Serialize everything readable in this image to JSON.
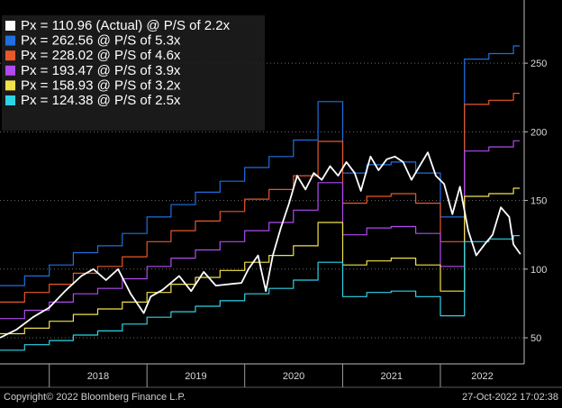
{
  "chart_data": {
    "type": "line",
    "title": "",
    "xlabel": "",
    "ylabel": "",
    "x_tick_labels": [
      "2018",
      "2019",
      "2020",
      "2021",
      "2022"
    ],
    "y_tick_labels": [
      "50",
      "100",
      "150",
      "200",
      "250"
    ],
    "y_ticks": [
      50,
      100,
      150,
      200,
      250
    ],
    "ylim": [
      31,
      296
    ],
    "xlim": [
      "2017-07-01",
      "2022-11-10"
    ],
    "year_boundaries": [
      "2018-01-01",
      "2019-01-01",
      "2020-01-01",
      "2021-01-01",
      "2022-01-01"
    ],
    "grid": "horizontal dotted",
    "legend_position": "top-left",
    "series": [
      {
        "name": "Px = 110.96 (Actual) @ P/S of 2.2x",
        "color": "#ffffff",
        "kind": "line",
        "points": [
          [
            "2017-07-01",
            50
          ],
          [
            "2017-09-01",
            56
          ],
          [
            "2017-11-01",
            65
          ],
          [
            "2018-01-01",
            72
          ],
          [
            "2018-03-01",
            84
          ],
          [
            "2018-05-01",
            95
          ],
          [
            "2018-06-15",
            100
          ],
          [
            "2018-08-01",
            92
          ],
          [
            "2018-09-15",
            100
          ],
          [
            "2018-11-01",
            82
          ],
          [
            "2018-12-20",
            68
          ],
          [
            "2019-01-15",
            80
          ],
          [
            "2019-03-01",
            85
          ],
          [
            "2019-05-01",
            95
          ],
          [
            "2019-06-15",
            84
          ],
          [
            "2019-08-01",
            98
          ],
          [
            "2019-09-15",
            88
          ],
          [
            "2019-11-01",
            89
          ],
          [
            "2019-12-20",
            90
          ],
          [
            "2020-01-15",
            100
          ],
          [
            "2020-02-20",
            110
          ],
          [
            "2020-03-20",
            84
          ],
          [
            "2020-04-15",
            110
          ],
          [
            "2020-05-15",
            130
          ],
          [
            "2020-06-15",
            148
          ],
          [
            "2020-07-15",
            168
          ],
          [
            "2020-08-15",
            158
          ],
          [
            "2020-09-15",
            170
          ],
          [
            "2020-10-15",
            165
          ],
          [
            "2020-11-15",
            175
          ],
          [
            "2020-12-15",
            168
          ],
          [
            "2021-01-15",
            178
          ],
          [
            "2021-02-15",
            170
          ],
          [
            "2021-03-10",
            157
          ],
          [
            "2021-04-15",
            182
          ],
          [
            "2021-05-15",
            172
          ],
          [
            "2021-06-15",
            180
          ],
          [
            "2021-07-15",
            182
          ],
          [
            "2021-08-15",
            178
          ],
          [
            "2021-09-15",
            165
          ],
          [
            "2021-10-15",
            175
          ],
          [
            "2021-11-15",
            185
          ],
          [
            "2021-12-15",
            168
          ],
          [
            "2022-01-15",
            162
          ],
          [
            "2022-02-15",
            140
          ],
          [
            "2022-03-15",
            160
          ],
          [
            "2022-04-15",
            128
          ],
          [
            "2022-05-15",
            110
          ],
          [
            "2022-06-15",
            118
          ],
          [
            "2022-07-15",
            125
          ],
          [
            "2022-08-15",
            145
          ],
          [
            "2022-09-15",
            138
          ],
          [
            "2022-10-01",
            118
          ],
          [
            "2022-10-27",
            110.96
          ]
        ]
      },
      {
        "name": "Px = 262.56 @ P/S of 5.3x",
        "color": "#1f6fe0",
        "kind": "step",
        "levels": [
          [
            "2017-07-01",
            88
          ],
          [
            "2017-10-01",
            95
          ],
          [
            "2018-01-01",
            103
          ],
          [
            "2018-04-01",
            112
          ],
          [
            "2018-07-01",
            117
          ],
          [
            "2018-10-01",
            126
          ],
          [
            "2019-01-01",
            138
          ],
          [
            "2019-04-01",
            147
          ],
          [
            "2019-07-01",
            156
          ],
          [
            "2019-10-01",
            164
          ],
          [
            "2020-01-01",
            174
          ],
          [
            "2020-04-01",
            182
          ],
          [
            "2020-07-01",
            194
          ],
          [
            "2020-10-01",
            222
          ],
          [
            "2021-01-01",
            170
          ],
          [
            "2021-04-01",
            176
          ],
          [
            "2021-07-01",
            178
          ],
          [
            "2021-10-01",
            170
          ],
          [
            "2022-01-01",
            138
          ],
          [
            "2022-04-01",
            253
          ],
          [
            "2022-07-01",
            257
          ],
          [
            "2022-10-01",
            262.56
          ]
        ]
      },
      {
        "name": "Px = 228.02 @ P/S of 4.6x",
        "color": "#e8582a",
        "kind": "step",
        "levels": [
          [
            "2017-07-01",
            76
          ],
          [
            "2017-10-01",
            83
          ],
          [
            "2018-01-01",
            89
          ],
          [
            "2018-04-01",
            97
          ],
          [
            "2018-07-01",
            102
          ],
          [
            "2018-10-01",
            109
          ],
          [
            "2019-01-01",
            120
          ],
          [
            "2019-04-01",
            128
          ],
          [
            "2019-07-01",
            135
          ],
          [
            "2019-10-01",
            142
          ],
          [
            "2020-01-01",
            151
          ],
          [
            "2020-04-01",
            158
          ],
          [
            "2020-07-01",
            168
          ],
          [
            "2020-10-01",
            193
          ],
          [
            "2021-01-01",
            148
          ],
          [
            "2021-04-01",
            153
          ],
          [
            "2021-07-01",
            155
          ],
          [
            "2021-10-01",
            148
          ],
          [
            "2022-01-01",
            120
          ],
          [
            "2022-04-01",
            220
          ],
          [
            "2022-07-01",
            223
          ],
          [
            "2022-10-01",
            228.02
          ]
        ]
      },
      {
        "name": "Px = 193.47 @ P/S of 3.9x",
        "color": "#b04bf0",
        "kind": "step",
        "levels": [
          [
            "2017-07-01",
            64
          ],
          [
            "2017-10-01",
            70
          ],
          [
            "2018-01-01",
            76
          ],
          [
            "2018-04-01",
            82
          ],
          [
            "2018-07-01",
            86
          ],
          [
            "2018-10-01",
            93
          ],
          [
            "2019-01-01",
            102
          ],
          [
            "2019-04-01",
            108
          ],
          [
            "2019-07-01",
            114
          ],
          [
            "2019-10-01",
            120
          ],
          [
            "2020-01-01",
            128
          ],
          [
            "2020-04-01",
            134
          ],
          [
            "2020-07-01",
            143
          ],
          [
            "2020-10-01",
            163
          ],
          [
            "2021-01-01",
            125
          ],
          [
            "2021-04-01",
            130
          ],
          [
            "2021-07-01",
            131
          ],
          [
            "2021-10-01",
            126
          ],
          [
            "2022-01-01",
            102
          ],
          [
            "2022-04-01",
            186
          ],
          [
            "2022-07-01",
            189
          ],
          [
            "2022-10-01",
            193.47
          ]
        ]
      },
      {
        "name": "Px = 158.93 @ P/S of 3.2x",
        "color": "#f2e24a",
        "kind": "step",
        "levels": [
          [
            "2017-07-01",
            53
          ],
          [
            "2017-10-01",
            57
          ],
          [
            "2018-01-01",
            62
          ],
          [
            "2018-04-01",
            67
          ],
          [
            "2018-07-01",
            71
          ],
          [
            "2018-10-01",
            76
          ],
          [
            "2019-01-01",
            83
          ],
          [
            "2019-04-01",
            89
          ],
          [
            "2019-07-01",
            94
          ],
          [
            "2019-10-01",
            99
          ],
          [
            "2020-01-01",
            105
          ],
          [
            "2020-04-01",
            110
          ],
          [
            "2020-07-01",
            117
          ],
          [
            "2020-10-01",
            134
          ],
          [
            "2021-01-01",
            103
          ],
          [
            "2021-04-01",
            106
          ],
          [
            "2021-07-01",
            108
          ],
          [
            "2021-10-01",
            103
          ],
          [
            "2022-01-01",
            84
          ],
          [
            "2022-04-01",
            153
          ],
          [
            "2022-07-01",
            155
          ],
          [
            "2022-10-01",
            158.93
          ]
        ]
      },
      {
        "name": "Px = 124.38 @ P/S of 2.5x",
        "color": "#2ed3e6",
        "kind": "step",
        "levels": [
          [
            "2017-07-01",
            41
          ],
          [
            "2017-10-01",
            45
          ],
          [
            "2018-01-01",
            48
          ],
          [
            "2018-04-01",
            52
          ],
          [
            "2018-07-01",
            55
          ],
          [
            "2018-10-01",
            60
          ],
          [
            "2019-01-01",
            65
          ],
          [
            "2019-04-01",
            69
          ],
          [
            "2019-07-01",
            73
          ],
          [
            "2019-10-01",
            77
          ],
          [
            "2020-01-01",
            82
          ],
          [
            "2020-04-01",
            86
          ],
          [
            "2020-07-01",
            92
          ],
          [
            "2020-10-01",
            105
          ],
          [
            "2021-01-01",
            80
          ],
          [
            "2021-04-01",
            83
          ],
          [
            "2021-07-01",
            84
          ],
          [
            "2021-10-01",
            80
          ],
          [
            "2022-01-01",
            66
          ],
          [
            "2022-04-01",
            120
          ],
          [
            "2022-07-01",
            122
          ],
          [
            "2022-10-01",
            124.38
          ]
        ]
      }
    ]
  },
  "footer": {
    "copyright": "Copyright© 2022 Bloomberg Finance L.P.",
    "timestamp": "27-Oct-2022 17:02:38"
  }
}
